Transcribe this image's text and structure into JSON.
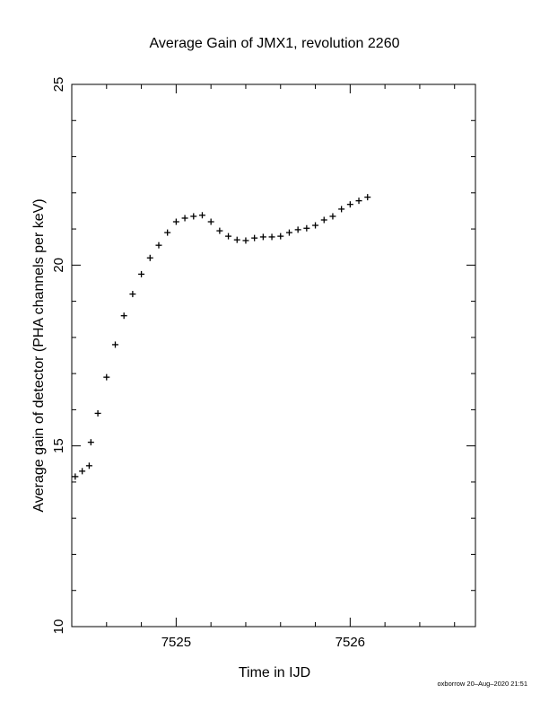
{
  "chart_data": {
    "type": "scatter",
    "title": "Average Gain of JMX1, revolution 2260",
    "xlabel": "Time in IJD",
    "ylabel": "Average gain of detector (PHA channels per keV)",
    "xlim": [
      7524.4,
      7526.72
    ],
    "ylim": [
      10,
      25
    ],
    "x_ticks": [
      7525,
      7526
    ],
    "x_tick_labels": [
      "7525",
      "7526"
    ],
    "x_minor_step": 0.2,
    "y_ticks": [
      10,
      15,
      20,
      25
    ],
    "y_tick_labels": [
      "10",
      "15",
      "20",
      "25"
    ],
    "y_minor_step": 1,
    "grid": false,
    "marker": "plus",
    "color": "#000000",
    "series": [
      {
        "points": [
          [
            7524.42,
            14.15
          ],
          [
            7524.46,
            14.3
          ],
          [
            7524.5,
            14.45
          ],
          [
            7524.51,
            15.1
          ],
          [
            7524.55,
            15.9
          ],
          [
            7524.6,
            16.9
          ],
          [
            7524.65,
            17.8
          ],
          [
            7524.7,
            18.6
          ],
          [
            7524.75,
            19.2
          ],
          [
            7524.8,
            19.75
          ],
          [
            7524.85,
            20.2
          ],
          [
            7524.9,
            20.55
          ],
          [
            7524.95,
            20.9
          ],
          [
            7525.0,
            21.2
          ],
          [
            7525.05,
            21.3
          ],
          [
            7525.1,
            21.35
          ],
          [
            7525.15,
            21.38
          ],
          [
            7525.2,
            21.2
          ],
          [
            7525.25,
            20.95
          ],
          [
            7525.3,
            20.8
          ],
          [
            7525.35,
            20.7
          ],
          [
            7525.4,
            20.68
          ],
          [
            7525.45,
            20.75
          ],
          [
            7525.5,
            20.78
          ],
          [
            7525.55,
            20.78
          ],
          [
            7525.6,
            20.8
          ],
          [
            7525.65,
            20.9
          ],
          [
            7525.7,
            20.98
          ],
          [
            7525.75,
            21.02
          ],
          [
            7525.8,
            21.1
          ],
          [
            7525.85,
            21.25
          ],
          [
            7525.9,
            21.35
          ],
          [
            7525.95,
            21.55
          ],
          [
            7526.0,
            21.68
          ],
          [
            7526.05,
            21.78
          ],
          [
            7526.1,
            21.88
          ]
        ]
      }
    ]
  },
  "footer": "oxborrow 20–Aug–2020 21:51"
}
